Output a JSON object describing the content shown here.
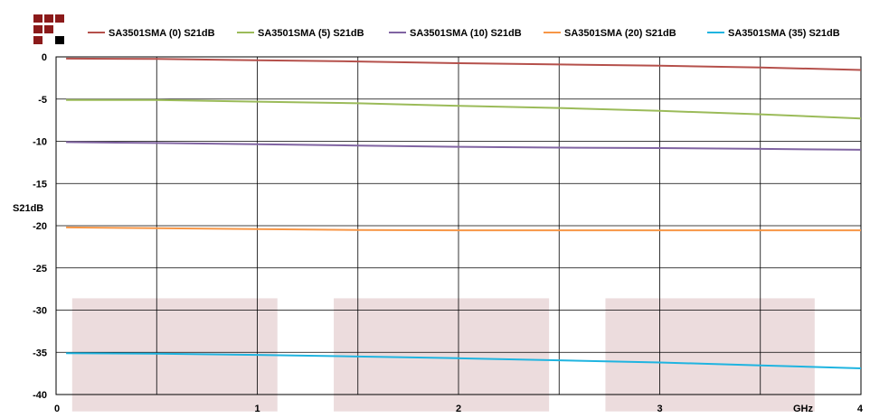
{
  "chart_data": {
    "type": "line",
    "xlabel": "GHz",
    "ylabel": "S21dB",
    "xlim": [
      0,
      4
    ],
    "ylim": [
      -40,
      0
    ],
    "x_ticks": [
      0,
      1,
      2,
      3,
      4
    ],
    "y_ticks": [
      0,
      -5,
      -10,
      -15,
      -20,
      -25,
      -30,
      -35,
      -40
    ],
    "grid": true,
    "legend_position": "top",
    "x": [
      0.05,
      0.5,
      1.0,
      1.5,
      2.0,
      2.5,
      3.0,
      3.5,
      4.0
    ],
    "series": [
      {
        "name": "SA3501SMA (0) S21dB",
        "color": "#b5504b",
        "values": [
          -0.2,
          -0.25,
          -0.4,
          -0.55,
          -0.75,
          -0.9,
          -1.05,
          -1.25,
          -1.55
        ]
      },
      {
        "name": "SA3501SMA (5) S21dB",
        "color": "#9bbb59",
        "values": [
          -5.1,
          -5.1,
          -5.3,
          -5.5,
          -5.8,
          -6.05,
          -6.4,
          -6.8,
          -7.3
        ]
      },
      {
        "name": "SA3501SMA (10) S21dB",
        "color": "#8064a2",
        "values": [
          -10.1,
          -10.2,
          -10.35,
          -10.5,
          -10.65,
          -10.75,
          -10.8,
          -10.9,
          -11.0
        ]
      },
      {
        "name": "SA3501SMA (20) S21dB",
        "color": "#f79646",
        "values": [
          -20.2,
          -20.3,
          -20.4,
          -20.5,
          -20.55,
          -20.55,
          -20.55,
          -20.55,
          -20.55
        ]
      },
      {
        "name": "SA3501SMA (35) S21dB",
        "color": "#1fb4e0",
        "values": [
          -35.1,
          -35.15,
          -35.3,
          -35.5,
          -35.7,
          -35.95,
          -36.2,
          -36.55,
          -36.9
        ]
      }
    ],
    "shaded_bands": [
      {
        "x_start": 0.08,
        "x_end": 1.1,
        "y_start": -28.6,
        "y_end": -42
      },
      {
        "x_start": 1.38,
        "x_end": 2.45,
        "y_start": -28.6,
        "y_end": -42
      },
      {
        "x_start": 2.73,
        "x_end": 3.77,
        "y_start": -28.6,
        "y_end": -42
      }
    ]
  },
  "colors": {
    "logo_red": "#8b1a1a",
    "logo_black": "#000000",
    "grid": "#000000",
    "band": "#ecdcdd"
  },
  "icons": {
    "logo": "brand-logo-icon"
  }
}
